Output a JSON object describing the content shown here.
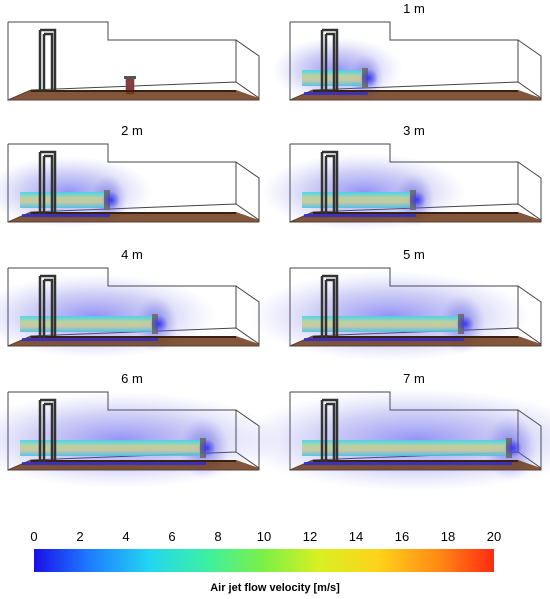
{
  "panels": [
    {
      "label": "",
      "jet_reach_m": 0
    },
    {
      "label": "1 m",
      "jet_reach_m": 1
    },
    {
      "label": "2 m",
      "jet_reach_m": 2
    },
    {
      "label": "3 m",
      "jet_reach_m": 3
    },
    {
      "label": "4 m",
      "jet_reach_m": 4
    },
    {
      "label": "5 m",
      "jet_reach_m": 5
    },
    {
      "label": "6 m",
      "jet_reach_m": 6
    },
    {
      "label": "7 m",
      "jet_reach_m": 7
    }
  ],
  "colorbar": {
    "title": "Air jet flow velocity  [m/s]",
    "ticks": [
      "0",
      "2",
      "4",
      "6",
      "8",
      "10",
      "12",
      "14",
      "16",
      "18",
      "20"
    ],
    "min": 0,
    "max": 20,
    "colors": [
      "#1a10e8",
      "#1f7bff",
      "#22d6f0",
      "#3ef0a0",
      "#7cf045",
      "#d8f022",
      "#ffd21a",
      "#ff8a14",
      "#ff2a10"
    ]
  },
  "colors": {
    "room_outline": "#444444",
    "floor": "#6b3818",
    "door_frame": "#333333",
    "jet_core": "#c8c89a",
    "jet_halo": "#5a5ae0"
  }
}
